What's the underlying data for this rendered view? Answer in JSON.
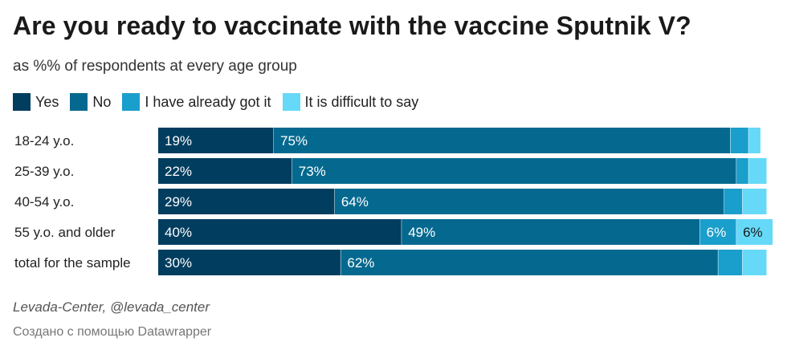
{
  "chart_data": {
    "type": "bar",
    "stacked": true,
    "orientation": "horizontal",
    "title": "Are you ready to vaccinate with the vaccine Sputnik V?",
    "subtitle": "as %% of respondents at every age group",
    "categories": [
      "18-24 y.o.",
      "25-39 y.o.",
      "40-54 y.o.",
      "55 y.o. and older",
      "total for the sample"
    ],
    "series": [
      {
        "name": "Yes",
        "color": "#003d5f",
        "values": [
          19,
          22,
          29,
          40,
          30
        ]
      },
      {
        "name": "No",
        "color": "#05698f",
        "values": [
          75,
          73,
          64,
          49,
          62
        ]
      },
      {
        "name": "I have already got it",
        "color": "#1a9ecb",
        "values": [
          3,
          2,
          3,
          6,
          4
        ]
      },
      {
        "name": "It is difficult to say",
        "color": "#66d9f9",
        "values": [
          2,
          3,
          4,
          6,
          4
        ]
      }
    ],
    "data_labels": [
      [
        "19%",
        "75%",
        "",
        ""
      ],
      [
        "22%",
        "73%",
        "",
        ""
      ],
      [
        "29%",
        "64%",
        "",
        ""
      ],
      [
        "40%",
        "49%",
        "6%",
        "6%"
      ],
      [
        "30%",
        "62%",
        "",
        ""
      ]
    ],
    "xlim": [
      0,
      100
    ],
    "legend_position": "top-left",
    "source": "Levada-Center, @levada_center",
    "credit": "Создано с помощью Datawrapper"
  }
}
